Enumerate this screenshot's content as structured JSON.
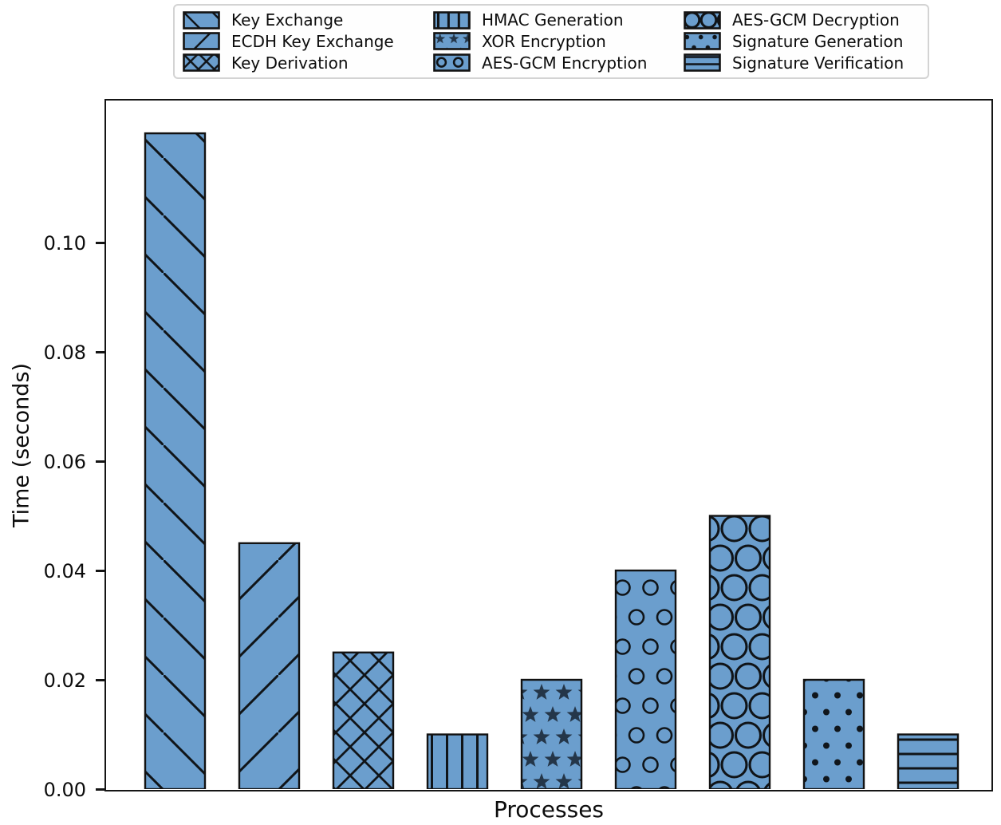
{
  "chart_data": {
    "type": "bar",
    "title": "",
    "xlabel": "Processes",
    "ylabel": "Time (seconds)",
    "ylim": [
      0,
      0.126
    ],
    "yticks": [
      {
        "value": 0.0,
        "label": "0.00"
      },
      {
        "value": 0.02,
        "label": "0.02"
      },
      {
        "value": 0.04,
        "label": "0.04"
      },
      {
        "value": 0.06,
        "label": "0.06"
      },
      {
        "value": 0.08,
        "label": "0.08"
      },
      {
        "value": 0.1,
        "label": "0.10"
      }
    ],
    "grid": false,
    "legend_position": "top-center",
    "legend_columns": 3,
    "categories": [
      "Key Exchange",
      "ECDH Key Exchange",
      "Key Derivation",
      "HMAC Generation",
      "XOR Encryption",
      "AES-GCM Encryption",
      "AES-GCM Decryption",
      "Signature Generation",
      "Signature Verification"
    ],
    "values": [
      0.12,
      0.045,
      0.025,
      0.01,
      0.02,
      0.04,
      0.05,
      0.02,
      0.01
    ],
    "hatches": [
      "backslash",
      "slash",
      "cross",
      "vline",
      "star",
      "circle-small",
      "circle-large",
      "dot",
      "hline"
    ],
    "bar_fill_color": "#6B9ECD",
    "bar_edge_color": "#121212",
    "hatch_color": "#101418",
    "star_fill_color": "#243649",
    "dot_fill_color": "#10161c"
  },
  "legend": {
    "items": [
      {
        "label": "Key Exchange",
        "hatch": "backslash"
      },
      {
        "label": "ECDH Key Exchange",
        "hatch": "slash"
      },
      {
        "label": "Key Derivation",
        "hatch": "cross"
      },
      {
        "label": "HMAC Generation",
        "hatch": "vline"
      },
      {
        "label": "XOR Encryption",
        "hatch": "star"
      },
      {
        "label": "AES-GCM Encryption",
        "hatch": "circle-small"
      },
      {
        "label": "AES-GCM Decryption",
        "hatch": "circle-large"
      },
      {
        "label": "Signature Generation",
        "hatch": "dot"
      },
      {
        "label": "Signature Verification",
        "hatch": "hline"
      }
    ]
  }
}
